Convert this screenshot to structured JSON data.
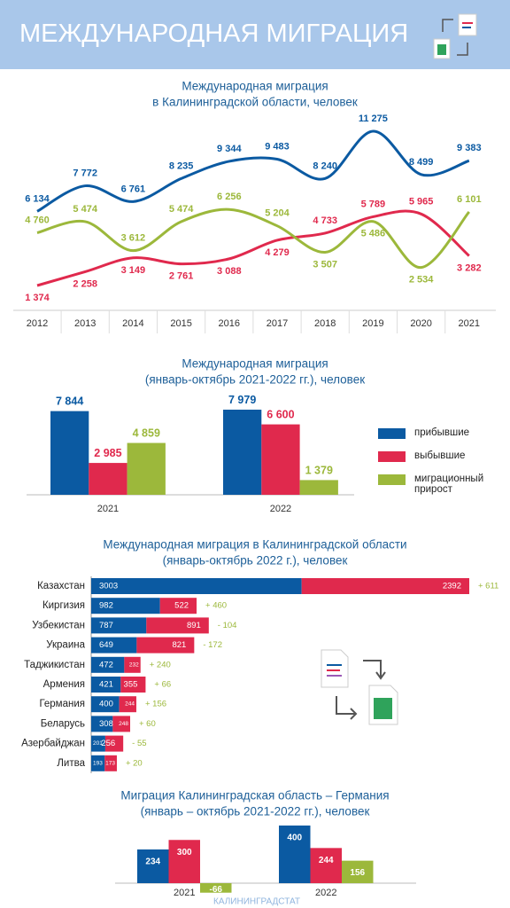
{
  "header": {
    "title": "МЕЖДУНАРОДНАЯ МИГРАЦИЯ"
  },
  "source": "КАЛИНИНГРАДСТАТ",
  "chart_data": [
    {
      "type": "line",
      "title": [
        "Международная миграция",
        "в Калининградской области, человек"
      ],
      "categories": [
        "2012",
        "2013",
        "2014",
        "2015",
        "2016",
        "2017",
        "2018",
        "2019",
        "2020",
        "2021"
      ],
      "series": [
        {
          "color": "#0b5aa2",
          "values": [
            6134,
            7772,
            6761,
            8235,
            9344,
            9483,
            8240,
            11275,
            8499,
            9383
          ],
          "value_labels": [
            "6 134",
            "7 772",
            "6 761",
            "8 235",
            "9 344",
            "9 483",
            "8 240",
            "11 275",
            "8 499",
            "9 383"
          ]
        },
        {
          "color": "#e0294d",
          "values": [
            1374,
            2258,
            3149,
            2761,
            3088,
            4279,
            4733,
            5789,
            5965,
            3282
          ],
          "value_labels": [
            "1 374",
            "2 258",
            "3 149",
            "2 761",
            "3 088",
            "4 279",
            "4 733",
            "5 789",
            "5 965",
            "3 282"
          ]
        },
        {
          "color": "#9cb83b",
          "values": [
            4760,
            5474,
            3612,
            5474,
            6256,
            5204,
            3507,
            5486,
            2534,
            6101
          ],
          "value_labels": [
            "4 760",
            "5 474",
            "3 612",
            "5 474",
            "6 256",
            "5 204",
            "3 507",
            "5 486",
            "2 534",
            "6 101"
          ]
        }
      ]
    },
    {
      "type": "bar",
      "title": [
        "Международная миграция",
        "(январь-октябрь 2021-2022 гг.), человек"
      ],
      "categories": [
        "2021",
        "2022"
      ],
      "series": [
        {
          "name": "прибывшие",
          "color": "#0b5aa2",
          "values": [
            7844,
            7979
          ],
          "value_labels": [
            "7 844",
            "7 979"
          ]
        },
        {
          "name": "выбывшие",
          "color": "#e0294d",
          "values": [
            2985,
            6600
          ],
          "value_labels": [
            "2 985",
            "6 600"
          ]
        },
        {
          "name": "миграционный прирост",
          "color": "#9cb83b",
          "values": [
            4859,
            1379
          ],
          "value_labels": [
            "4 859",
            "1 379"
          ]
        }
      ]
    },
    {
      "type": "stacked-hbar",
      "title": [
        "Международная миграция в Калининградской области",
        "(январь-октябрь 2022 г.), человек"
      ],
      "categories": [
        "Казахстан",
        "Киргизия",
        "Узбекистан",
        "Украина",
        "Таджикистан",
        "Армения",
        "Германия",
        "Беларусь",
        "Азербайджан",
        "Литва"
      ],
      "series": [
        {
          "color": "#0b5aa2",
          "values": [
            3003,
            982,
            787,
            649,
            472,
            421,
            400,
            308,
            201,
            193
          ]
        },
        {
          "color": "#e0294d",
          "values": [
            2392,
            522,
            891,
            821,
            232,
            355,
            244,
            248,
            256,
            173
          ]
        }
      ],
      "annotations": {
        "color": "#9cb83b",
        "values": [
          611,
          460,
          -104,
          -172,
          240,
          66,
          156,
          60,
          -55,
          20
        ],
        "value_labels": [
          "+ 611",
          "+ 460",
          "- 104",
          "- 172",
          "+ 240",
          "+ 66",
          "+ 156",
          "+ 60",
          "- 55",
          "+ 20"
        ]
      }
    },
    {
      "type": "bar",
      "title": [
        "Миграция Калининградская область – Германия",
        "(январь – октябрь 2021-2022 гг.), человек"
      ],
      "categories": [
        "2021",
        "2022"
      ],
      "series": [
        {
          "color": "#0b5aa2",
          "values": [
            234,
            400
          ]
        },
        {
          "color": "#e0294d",
          "values": [
            300,
            244
          ]
        },
        {
          "color": "#9cb83b",
          "values": [
            -66,
            156
          ]
        }
      ]
    }
  ]
}
